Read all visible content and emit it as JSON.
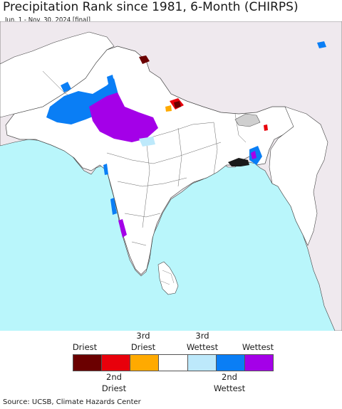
{
  "title": "Precipitation Rank since 1981, 6-Month (CHIRPS)",
  "subtitle": "Jun. 1 - Nov. 30, 2024 [final]",
  "legend": {
    "top_labels": [
      {
        "id": "driest",
        "text": "Driest"
      },
      {
        "id": "3rd-driest",
        "text": "3rd\nDriest"
      },
      {
        "id": "3rd-wettest",
        "text": "3rd\nWettest"
      },
      {
        "id": "wettest",
        "text": "Wettest"
      }
    ],
    "bottom_labels": [
      {
        "id": "2nd-driest",
        "text": "2nd\nDriest"
      },
      {
        "id": "2nd-wettest",
        "text": "2nd\nWettest"
      }
    ],
    "colors": [
      "#6b0000",
      "#e8000b",
      "#ffaa00",
      "#ffffff",
      "#bde9fb",
      "#0a7ef5",
      "#a400e8"
    ]
  },
  "source": "Source: UCSB, Climate Hazards Center"
}
